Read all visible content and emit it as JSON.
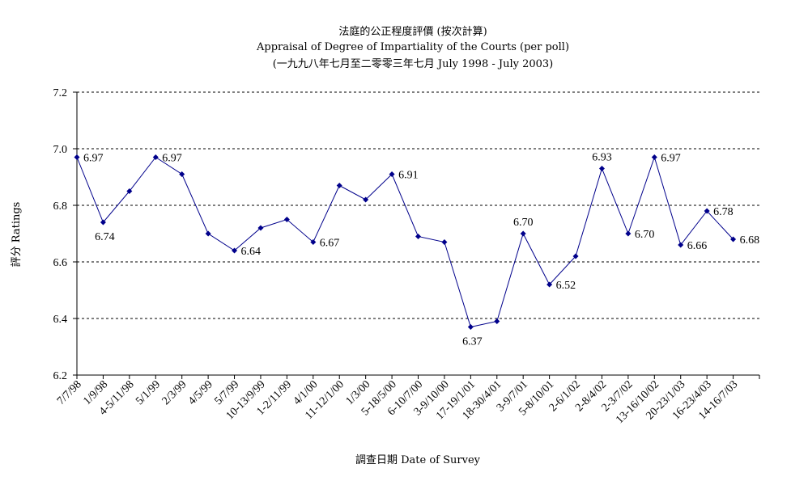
{
  "chart_data": {
    "type": "line",
    "title": "法庭的公正程度評價 (按次計算)",
    "subtitle": "Appraisal of Degree of Impartiality of the Courts (per poll)",
    "subtitle2": "(一九九八年七月至二零零三年七月 July 1998 - July 2003)",
    "xlabel": "調查日期 Date of Survey",
    "ylabel": "評分 Ratings",
    "ylim": [
      6.2,
      7.2
    ],
    "yticks": [
      "6.2",
      "6.4",
      "6.6",
      "6.8",
      "7.0",
      "7.2"
    ],
    "grid": true,
    "line_color": "#00008B",
    "categories": [
      "7/7/98",
      "1/9/98",
      "4-5/11/98",
      "5/1/99",
      "2/3/99",
      "4/5/99",
      "5/7/99",
      "10-13/9/99",
      "1-2/11/99",
      "4/1/00",
      "11-12/1/00",
      "1/3/00",
      "5-18/5/00",
      "6-10/7/00",
      "3-9/10/00",
      "17-19/1/01",
      "18-30/4/01",
      "3-9/7/01",
      "5-8/10/01",
      "2-6/1/02",
      "2-8/4/02",
      "2-3/7/02",
      "13-16/10/02",
      "20-23/1/03",
      "16-23/4/03",
      "14-16/7/03"
    ],
    "values": [
      6.97,
      6.74,
      6.85,
      6.97,
      6.91,
      6.7,
      6.64,
      6.72,
      6.75,
      6.67,
      6.87,
      6.82,
      6.91,
      6.69,
      6.67,
      6.37,
      6.39,
      6.7,
      6.52,
      6.62,
      6.93,
      6.7,
      6.97,
      6.66,
      6.78,
      6.68
    ],
    "data_labels": [
      {
        "index": 0,
        "text": "6.97",
        "pos": "right"
      },
      {
        "index": 1,
        "text": "6.74",
        "pos": "below"
      },
      {
        "index": 3,
        "text": "6.97",
        "pos": "right"
      },
      {
        "index": 6,
        "text": "6.64",
        "pos": "right"
      },
      {
        "index": 9,
        "text": "6.67",
        "pos": "right"
      },
      {
        "index": 12,
        "text": "6.91",
        "pos": "right"
      },
      {
        "index": 15,
        "text": "6.37",
        "pos": "below"
      },
      {
        "index": 17,
        "text": "6.70",
        "pos": "above"
      },
      {
        "index": 18,
        "text": "6.52",
        "pos": "right"
      },
      {
        "index": 20,
        "text": "6.93",
        "pos": "above"
      },
      {
        "index": 21,
        "text": "6.70",
        "pos": "right"
      },
      {
        "index": 22,
        "text": "6.97",
        "pos": "right"
      },
      {
        "index": 23,
        "text": "6.66",
        "pos": "right"
      },
      {
        "index": 24,
        "text": "6.78",
        "pos": "right"
      },
      {
        "index": 25,
        "text": "6.68",
        "pos": "right"
      }
    ]
  }
}
